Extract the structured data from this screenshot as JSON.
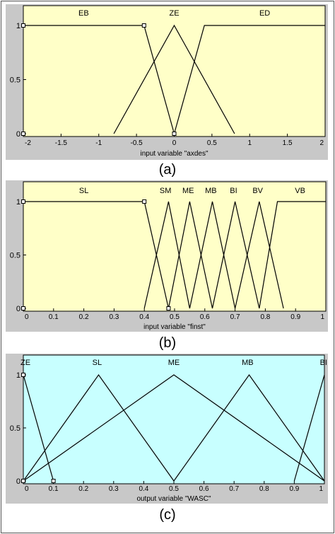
{
  "captions": [
    "(a)",
    "(b)",
    "(c)"
  ],
  "colors": {
    "panel_a_bg": "#ffffc8",
    "panel_b_bg": "#ffffc8",
    "panel_c_bg": "#c8ffff",
    "frame_gray": "#c8c8c8",
    "line": "#000000"
  },
  "chart_data": [
    {
      "type": "line",
      "xlabel": "input variable \"axdes\"",
      "xlim": [
        -2,
        2
      ],
      "ylim": [
        0,
        1
      ],
      "xticks": [
        -2,
        -1.5,
        -1,
        -0.5,
        0,
        0.5,
        1,
        1.5,
        2
      ],
      "xtick_labels": [
        "-2",
        "-1.5",
        "-1",
        "-0.5",
        "0",
        "0.5",
        "1",
        "1.5",
        "2"
      ],
      "yticks": [
        0,
        0.5,
        1
      ],
      "ytick_labels": [
        "0",
        "0.5",
        "1"
      ],
      "series": [
        {
          "name": "EB",
          "label_x": -1.2,
          "points": [
            [
              -2,
              1
            ],
            [
              -0.4,
              1
            ],
            [
              0,
              0
            ]
          ]
        },
        {
          "name": "ZE",
          "label_x": 0,
          "points": [
            [
              -0.8,
              0
            ],
            [
              0,
              1
            ],
            [
              0.8,
              0
            ]
          ]
        },
        {
          "name": "ED",
          "label_x": 1.2,
          "points": [
            [
              0,
              0
            ],
            [
              0.4,
              1
            ],
            [
              2,
              1
            ]
          ]
        }
      ],
      "markers": [
        [
          -2,
          1
        ],
        [
          -0.4,
          1
        ],
        [
          -2,
          0
        ],
        [
          0,
          0
        ]
      ]
    },
    {
      "type": "line",
      "xlabel": "input variable \"finst\"",
      "xlim": [
        0,
        1
      ],
      "ylim": [
        0,
        1
      ],
      "xticks": [
        0,
        0.1,
        0.2,
        0.3,
        0.4,
        0.5,
        0.6,
        0.7,
        0.8,
        0.9,
        1
      ],
      "xtick_labels": [
        "0",
        "0.1",
        "0.2",
        "0.3",
        "0.4",
        "0.5",
        "0.6",
        "0.7",
        "0.8",
        "0.9",
        "1"
      ],
      "yticks": [
        0,
        0.5,
        1
      ],
      "ytick_labels": [
        "0",
        "0.5",
        "1"
      ],
      "series": [
        {
          "name": "SL",
          "label_x": 0.2,
          "points": [
            [
              0,
              1
            ],
            [
              0.4,
              1
            ],
            [
              0.48,
              0
            ]
          ]
        },
        {
          "name": "SM",
          "label_x": 0.47,
          "points": [
            [
              0.4,
              0
            ],
            [
              0.48,
              1
            ],
            [
              0.55,
              0
            ]
          ]
        },
        {
          "name": "ME",
          "label_x": 0.545,
          "points": [
            [
              0.48,
              0
            ],
            [
              0.55,
              1
            ],
            [
              0.625,
              0
            ]
          ]
        },
        {
          "name": "MB",
          "label_x": 0.62,
          "points": [
            [
              0.55,
              0
            ],
            [
              0.625,
              1
            ],
            [
              0.7,
              0
            ]
          ]
        },
        {
          "name": "BI",
          "label_x": 0.695,
          "points": [
            [
              0.625,
              0
            ],
            [
              0.7,
              1
            ],
            [
              0.78,
              0
            ]
          ]
        },
        {
          "name": "BV",
          "label_x": 0.775,
          "points": [
            [
              0.7,
              0
            ],
            [
              0.78,
              1
            ],
            [
              0.86,
              0
            ]
          ]
        },
        {
          "name": "VB",
          "label_x": 0.915,
          "points": [
            [
              0.78,
              0
            ],
            [
              0.84,
              1
            ],
            [
              1,
              1
            ]
          ]
        }
      ],
      "markers": [
        [
          0,
          1
        ],
        [
          0.4,
          1
        ],
        [
          0,
          0
        ],
        [
          0.48,
          0
        ]
      ]
    },
    {
      "type": "line",
      "xlabel": "output variable \"WASC\"",
      "xlim": [
        0,
        1
      ],
      "ylim": [
        0,
        1
      ],
      "xticks": [
        0,
        0.1,
        0.2,
        0.3,
        0.4,
        0.5,
        0.6,
        0.7,
        0.8,
        0.9,
        1
      ],
      "xtick_labels": [
        "0",
        "0.1",
        "0.2",
        "0.3",
        "0.4",
        "0.5",
        "0.6",
        "0.7",
        "0.8",
        "0.9",
        "1"
      ],
      "yticks": [
        0,
        0.5,
        1
      ],
      "ytick_labels": [
        "0",
        "0.5",
        "1"
      ],
      "series": [
        {
          "name": "ZE",
          "label_x": -0.005,
          "points": [
            [
              0,
              1
            ],
            [
              0.1,
              0
            ]
          ]
        },
        {
          "name": "SL",
          "label_x": 0.245,
          "points": [
            [
              0,
              0
            ],
            [
              0.25,
              1
            ],
            [
              0.5,
              0
            ]
          ]
        },
        {
          "name": "ME",
          "label_x": 0.5,
          "points": [
            [
              0,
              0
            ],
            [
              0.5,
              1
            ],
            [
              1,
              0
            ]
          ]
        },
        {
          "name": "MB",
          "label_x": 0.745,
          "points": [
            [
              0.5,
              0
            ],
            [
              0.75,
              1
            ],
            [
              1,
              0
            ]
          ]
        },
        {
          "name": "BI",
          "label_x": 0.995,
          "points": [
            [
              0.9,
              0
            ],
            [
              1,
              1
            ]
          ]
        }
      ],
      "markers": [
        [
          0,
          1
        ],
        [
          0,
          0
        ],
        [
          0.1,
          0
        ]
      ]
    }
  ]
}
